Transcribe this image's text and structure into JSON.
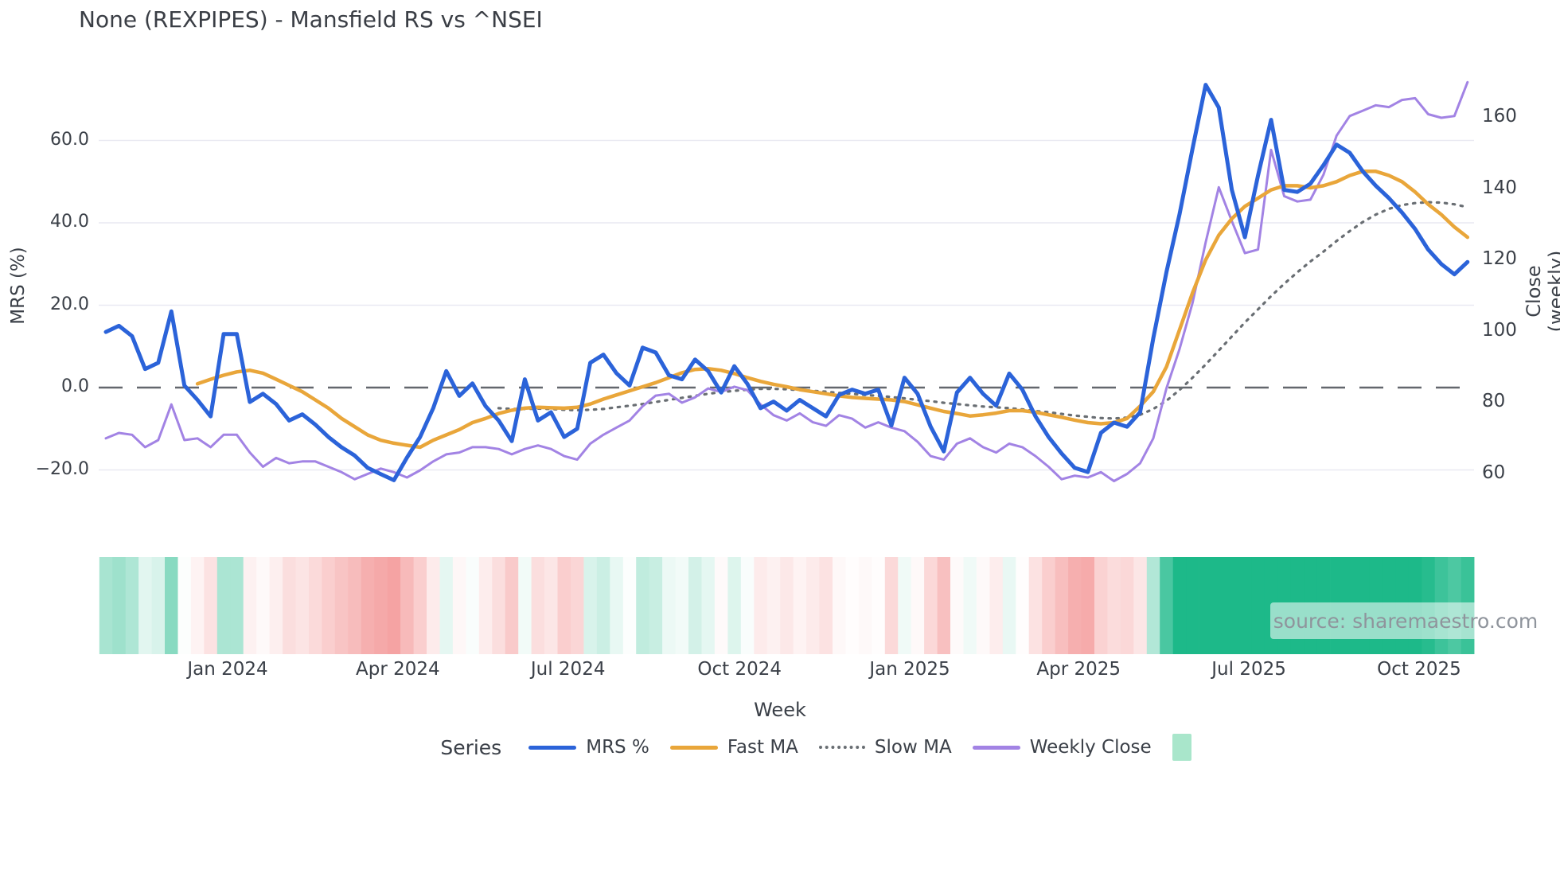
{
  "title": "None (REXPIPES) - Mansfield RS vs ^NSEI",
  "source_note": "source: sharemaestro.com",
  "legend": {
    "series_label": "Series",
    "items": [
      {
        "id": "mrs",
        "label": "MRS %",
        "swatch": "line",
        "color": "#2b63d9"
      },
      {
        "id": "fast-ma",
        "label": "Fast MA",
        "swatch": "line",
        "color": "#e9a63a"
      },
      {
        "id": "slow-ma",
        "label": "Slow MA",
        "swatch": "dotted",
        "color": "#696e73"
      },
      {
        "id": "weekly-close",
        "label": "Weekly Close",
        "swatch": "line",
        "color": "#a283e4"
      },
      {
        "id": "band",
        "label": "",
        "swatch": "square",
        "color": "#a9e6cb"
      }
    ]
  },
  "chart_data": {
    "type": "line",
    "title": "None (REXPIPES) - Mansfield RS vs ^NSEI",
    "xlabel": "Week",
    "ylabel_left": "MRS (%)",
    "ylabel_right": "Close (weekly)",
    "x_start_week": "2023-10-30",
    "weeks_total": 105,
    "grid": true,
    "zero_line_left": 0,
    "y_left_ticks": [
      {
        "label": "60.0",
        "value": 60
      },
      {
        "label": "40.0",
        "value": 40
      },
      {
        "label": "20.0",
        "value": 20
      },
      {
        "label": "0.0",
        "value": 0
      },
      {
        "label": "−20.0",
        "value": -20
      }
    ],
    "y_right_ticks": [
      {
        "label": "160",
        "value": 160
      },
      {
        "label": "140",
        "value": 140
      },
      {
        "label": "120",
        "value": 120
      },
      {
        "label": "100",
        "value": 100
      },
      {
        "label": "80",
        "value": 80
      },
      {
        "label": "60",
        "value": 60
      }
    ],
    "x_ticks": [
      {
        "label": "Jan 2024",
        "week": 9.3
      },
      {
        "label": "Apr 2024",
        "week": 22.3
      },
      {
        "label": "Jul 2024",
        "week": 35.3
      },
      {
        "label": "Oct 2024",
        "week": 48.4
      },
      {
        "label": "Jan 2025",
        "week": 61.4
      },
      {
        "label": "Apr 2025",
        "week": 74.3
      },
      {
        "label": "Jul 2025",
        "week": 87.3
      },
      {
        "label": "Oct 2025",
        "week": 100.3
      }
    ],
    "ylim_left": [
      -30,
      78
    ],
    "ylim_right": [
      55,
      172
    ],
    "series": [
      {
        "name": "MRS %",
        "axis": "left",
        "style": "solid",
        "width": 5,
        "color": "#2b63d9",
        "start_week": 0,
        "values": [
          13.5,
          15,
          12.5,
          4.5,
          6,
          18.5,
          0.5,
          -3,
          -7,
          13,
          13,
          -3.5,
          -1.5,
          -4,
          -8,
          -6.5,
          -9,
          -12,
          -14.5,
          -16.5,
          -19.5,
          -21,
          -22.5,
          -17,
          -12,
          -5,
          4,
          -2,
          1,
          -4.5,
          -8,
          -13,
          2,
          -8,
          -6,
          -12,
          -10,
          6,
          8,
          3.5,
          0.5,
          9.7,
          8.5,
          3,
          2,
          6.8,
          4,
          -1.2,
          5.2,
          0.9,
          -5,
          -3.4,
          -5.6,
          -3,
          -5,
          -7,
          -1.8,
          -0.5,
          -1.5,
          -0.5,
          -9.2,
          2.4,
          -1.5,
          -9.5,
          -15.5,
          -1.2,
          2.4,
          -1.5,
          -4.4,
          3.4,
          -0.5,
          -7,
          -12,
          -16,
          -19.5,
          -20.5,
          -11,
          -8.5,
          -9.5,
          -6,
          12,
          28,
          42,
          58,
          73.5,
          68,
          48,
          36.5,
          51.5,
          65,
          48,
          47.5,
          49.5,
          54,
          59,
          57,
          52.5,
          49,
          46,
          42.5,
          38.5,
          33.5,
          30,
          27.5,
          30.5
        ]
      },
      {
        "name": "Fast MA",
        "axis": "left",
        "style": "solid",
        "width": 4.5,
        "color": "#e9a63a",
        "start_week": 7,
        "values": [
          0.9,
          2,
          3,
          3.8,
          4.2,
          3.5,
          2,
          0.5,
          -1,
          -3,
          -5,
          -7.5,
          -9.5,
          -11.5,
          -12.8,
          -13.5,
          -14,
          -14.5,
          -12.8,
          -11.5,
          -10.2,
          -8.5,
          -7.5,
          -6.3,
          -5.5,
          -5,
          -4.8,
          -4.9,
          -5,
          -4.8,
          -4,
          -2.8,
          -1.8,
          -0.8,
          0.2,
          1.2,
          2.4,
          3.6,
          4.4,
          4.6,
          4.2,
          3.4,
          2.4,
          1.5,
          0.8,
          0.2,
          -0.5,
          -1,
          -1.5,
          -2,
          -2.4,
          -2.6,
          -2.8,
          -3,
          -3.4,
          -4.2,
          -5,
          -5.8,
          -6.3,
          -6.9,
          -6.6,
          -6.2,
          -5.6,
          -5.6,
          -6,
          -6.6,
          -7.2,
          -7.9,
          -8.5,
          -8.8,
          -8.5,
          -7.5,
          -4.5,
          -1,
          5,
          14,
          23,
          31,
          37,
          41,
          44,
          46,
          48,
          49,
          49,
          48.5,
          49,
          50,
          51.5,
          52.5,
          52.5,
          51.5,
          50,
          47.5,
          44.5,
          42,
          39,
          36.5
        ]
      },
      {
        "name": "Slow MA",
        "axis": "left",
        "style": "dotted",
        "width": 3.2,
        "color": "#696e73",
        "start_week": 30,
        "values": [
          -5,
          -5.2,
          -5.2,
          -5.1,
          -5.2,
          -5.4,
          -5.5,
          -5.4,
          -5.2,
          -4.8,
          -4.4,
          -4,
          -3.5,
          -3,
          -2.5,
          -2,
          -1.5,
          -1.1,
          -0.8,
          -0.5,
          -0.3,
          -0.3,
          -0.4,
          -0.6,
          -0.8,
          -1,
          -1.3,
          -1.5,
          -1.8,
          -2,
          -2.3,
          -2.6,
          -3,
          -3.3,
          -3.7,
          -4,
          -4.3,
          -4.6,
          -4.8,
          -5,
          -5.3,
          -5.7,
          -6,
          -6.4,
          -6.8,
          -7.1,
          -7.4,
          -7.5,
          -7.3,
          -6.6,
          -5.2,
          -3.2,
          -0.6,
          2.4,
          5.6,
          9,
          12.4,
          15.8,
          19,
          22.2,
          25.2,
          28,
          30.6,
          33,
          35.6,
          38,
          40.2,
          42,
          43.4,
          44.3,
          44.8,
          45,
          44.9,
          44.5,
          43.8
        ]
      },
      {
        "name": "Weekly Close",
        "axis": "right",
        "style": "solid",
        "width": 3,
        "color": "#a283e4",
        "start_week": 0,
        "values": [
          70,
          71.5,
          71,
          67.5,
          69.5,
          79.5,
          69.5,
          70,
          67.5,
          71,
          71,
          66,
          62,
          64.5,
          63,
          63.5,
          63.5,
          62,
          60.5,
          58.5,
          60,
          61.5,
          60.5,
          59,
          61,
          63.5,
          65.5,
          66,
          67.5,
          67.5,
          67,
          65.5,
          67,
          68,
          67,
          65,
          64,
          68.5,
          71,
          73,
          75,
          79,
          82,
          82.5,
          80,
          81.5,
          84,
          83,
          84.5,
          83.5,
          79.5,
          76.5,
          75,
          77,
          74.5,
          73.5,
          76.5,
          75.5,
          73,
          74.5,
          73,
          72,
          69,
          65,
          64,
          68.5,
          70,
          67.5,
          66,
          68.5,
          67.5,
          65,
          62,
          58.5,
          59.5,
          59,
          60.5,
          58,
          60,
          63,
          70,
          84,
          95,
          108,
          125,
          140.5,
          131,
          122,
          123,
          151,
          138,
          136.5,
          137,
          144,
          155,
          160.5,
          162,
          163.5,
          163,
          165,
          165.5,
          161,
          160,
          160.5,
          170
        ]
      }
    ],
    "band": {
      "description": "weekly strength heat strip derived from MRS %",
      "source_series": "MRS %",
      "green": "#1db989",
      "red": "#ef7070",
      "intensity_scale": 35
    },
    "colors": {
      "grid": "#e9e9f2",
      "zero_line": "#63676d",
      "text": "#3b4048"
    },
    "legend_position": "bottom"
  }
}
